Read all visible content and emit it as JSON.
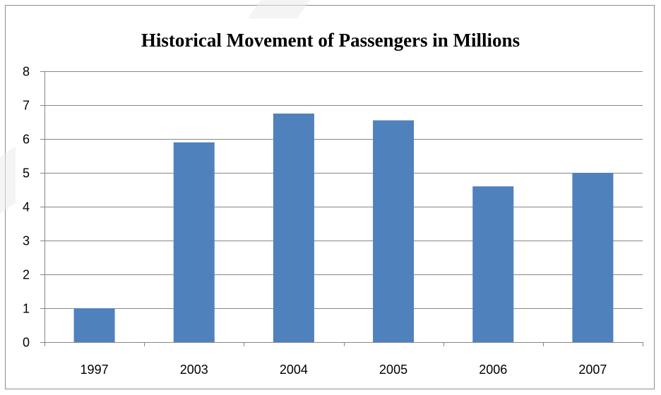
{
  "chart_data": {
    "type": "bar",
    "title": "Historical Movement of Passengers in Millions",
    "xlabel": "",
    "ylabel": "",
    "categories": [
      "1997",
      "2003",
      "2004",
      "2005",
      "2006",
      "2007"
    ],
    "values": [
      1.0,
      5.9,
      6.75,
      6.55,
      4.6,
      5.0
    ],
    "ylim": [
      0,
      8
    ],
    "yticks": [
      0,
      1,
      2,
      3,
      4,
      5,
      6,
      7,
      8
    ],
    "grid": true,
    "legend": "none",
    "colors": {
      "bar": "#4f81bd",
      "grid": "#868686",
      "axis": "#868686"
    }
  }
}
